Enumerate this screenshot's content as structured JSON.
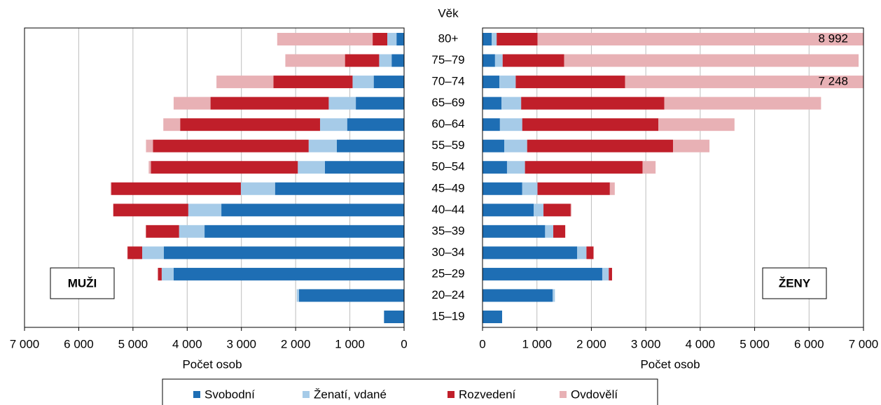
{
  "chart_data": {
    "type": "bar",
    "orientation": "horizontal",
    "stacked": true,
    "y_label": "Věk",
    "categories": [
      "80+",
      "75–79",
      "70–74",
      "65–69",
      "60–64",
      "55–59",
      "50–54",
      "45–49",
      "40–44",
      "35–39",
      "30–34",
      "25–29",
      "20–24",
      "15–19"
    ],
    "series": [
      {
        "name": "Svobodní",
        "color": "#1e6eb4"
      },
      {
        "name": "Ženatí, vdané",
        "color": "#a6cbe8"
      },
      {
        "name": "Rozvedení",
        "color": "#c01f2a"
      },
      {
        "name": "Ovdovělí",
        "color": "#e8b1b5"
      }
    ],
    "grid": true,
    "panels": [
      {
        "label": "MUŽI",
        "x_label": "Počet osob",
        "reversed": true,
        "xlim": [
          0,
          7000
        ],
        "xticks": [
          0,
          {
            "value": 1000,
            "label": "1 000"
          },
          {
            "value": 2000,
            "label": "2 000"
          },
          {
            "value": 3000,
            "label": "3 000"
          },
          {
            "value": 4000,
            "label": "4 000"
          },
          {
            "value": 5000,
            "label": "5 000"
          },
          {
            "value": 6000,
            "label": "6 000"
          },
          {
            "value": 7000,
            "label": "7 000"
          }
        ],
        "values": [
          [
            140,
            230,
            560,
            890,
            1050,
            1240,
            1460,
            2380,
            3370,
            3680,
            4430,
            4250,
            1940,
            370
          ],
          [
            170,
            230,
            390,
            500,
            500,
            520,
            500,
            630,
            610,
            470,
            400,
            220,
            40,
            0
          ],
          [
            270,
            630,
            1460,
            2180,
            2580,
            2870,
            2710,
            2390,
            1380,
            610,
            270,
            70,
            0,
            0
          ],
          [
            1760,
            1100,
            1050,
            680,
            310,
            130,
            40,
            15,
            10,
            5,
            5,
            0,
            0,
            0
          ]
        ]
      },
      {
        "label": "ŽENY",
        "x_label": "Počet osob",
        "reversed": false,
        "xlim": [
          0,
          7000
        ],
        "xticks": [
          0,
          {
            "value": 1000,
            "label": "1 000"
          },
          {
            "value": 2000,
            "label": "2 000"
          },
          {
            "value": 3000,
            "label": "3 000"
          },
          {
            "value": 4000,
            "label": "4 000"
          },
          {
            "value": 5000,
            "label": "5 000"
          },
          {
            "value": 6000,
            "label": "6 000"
          },
          {
            "value": 7000,
            "label": "7 000"
          }
        ],
        "values": [
          [
            170,
            230,
            310,
            350,
            320,
            400,
            450,
            730,
            940,
            1150,
            1740,
            2200,
            1290,
            360
          ],
          [
            90,
            140,
            300,
            360,
            410,
            420,
            330,
            280,
            180,
            150,
            170,
            120,
            40,
            0
          ],
          [
            750,
            1130,
            2010,
            2630,
            2500,
            2680,
            2160,
            1330,
            500,
            220,
            130,
            60,
            0,
            0
          ],
          [
            7982,
            5410,
            4628,
            2880,
            1400,
            670,
            240,
            90,
            15,
            0,
            0,
            0,
            0,
            0
          ]
        ],
        "annotations": [
          {
            "category_index": 0,
            "value": 8992,
            "label": "8 992"
          },
          {
            "category_index": 2,
            "value": 7248,
            "label": "7 248"
          }
        ]
      }
    ]
  }
}
